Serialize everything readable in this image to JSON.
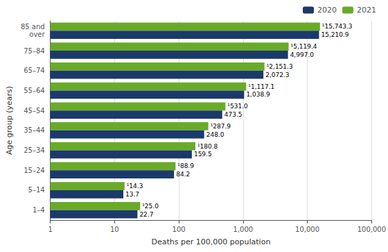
{
  "chart_data": {
    "type": "bar",
    "orientation": "horizontal",
    "log": "x",
    "categories": [
      "1–4",
      "5–14",
      "15–24",
      "25–34",
      "35–44",
      "45–54",
      "55–64",
      "65–74",
      "75–84",
      "85 and\nover"
    ],
    "series": [
      {
        "name": "2020",
        "color": "#1b3a6b",
        "values": [
          22.7,
          13.7,
          84.2,
          159.5,
          248.0,
          473.5,
          1038.9,
          2072.3,
          4997.0,
          15210.9
        ],
        "value_labels": [
          "22.7",
          "13.7",
          "84.2",
          "159.5",
          "248.0",
          "473.5",
          "1,038.9",
          "2,072.3",
          "4,997.0",
          "15,210.9"
        ]
      },
      {
        "name": "2021",
        "color": "#6aaa2a",
        "values": [
          25.0,
          14.3,
          88.9,
          180.8,
          287.9,
          531.0,
          1117.1,
          2151.3,
          5119.4,
          15743.3
        ],
        "value_labels": [
          "¹25.0",
          "¹14.3",
          "¹88.9",
          "¹180.8",
          "¹287.9",
          "¹531.0",
          "¹1,117.1",
          "¹2,151.3",
          "¹5,119.4",
          "¹15,743.3"
        ]
      }
    ],
    "xlabel": "Deaths per 100,000 population",
    "ylabel": "Age group (years)",
    "xlim": [
      1,
      100000
    ],
    "xticks": [
      1,
      10,
      100,
      {
        "value": 1000,
        "label": "1,000"
      },
      {
        "value": 10000,
        "label": "10,000"
      },
      {
        "value": 100000,
        "label": "100,000"
      }
    ],
    "grid": true,
    "legend": "upper right",
    "data_labels": true
  }
}
